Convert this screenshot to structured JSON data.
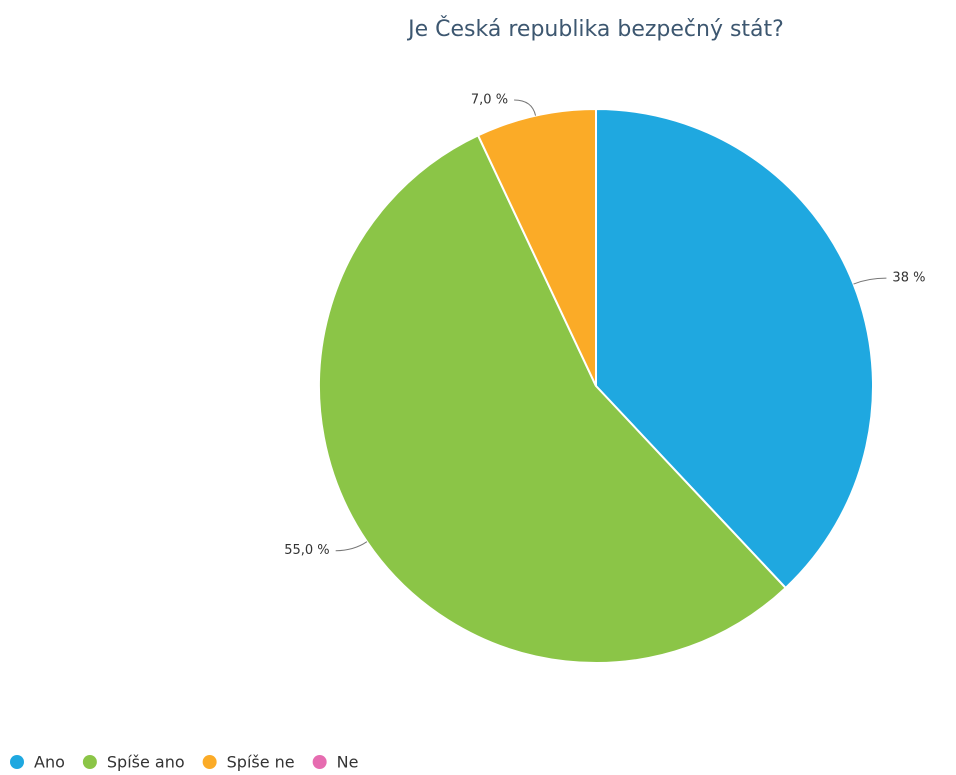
{
  "chart_data": {
    "type": "pie",
    "title": "Je Česká republika bezpečný stát?",
    "categories": [
      "Ano",
      "Spíše ano",
      "Spíše ne",
      "Ne"
    ],
    "values": [
      38,
      55,
      7,
      0
    ],
    "value_labels": [
      "38 %",
      "55,0 %",
      "7,0 %",
      null
    ],
    "colors": [
      "#1fa8e0",
      "#8bc547",
      "#fbab27",
      "#e66cb0"
    ],
    "legend": "bottom-left"
  }
}
